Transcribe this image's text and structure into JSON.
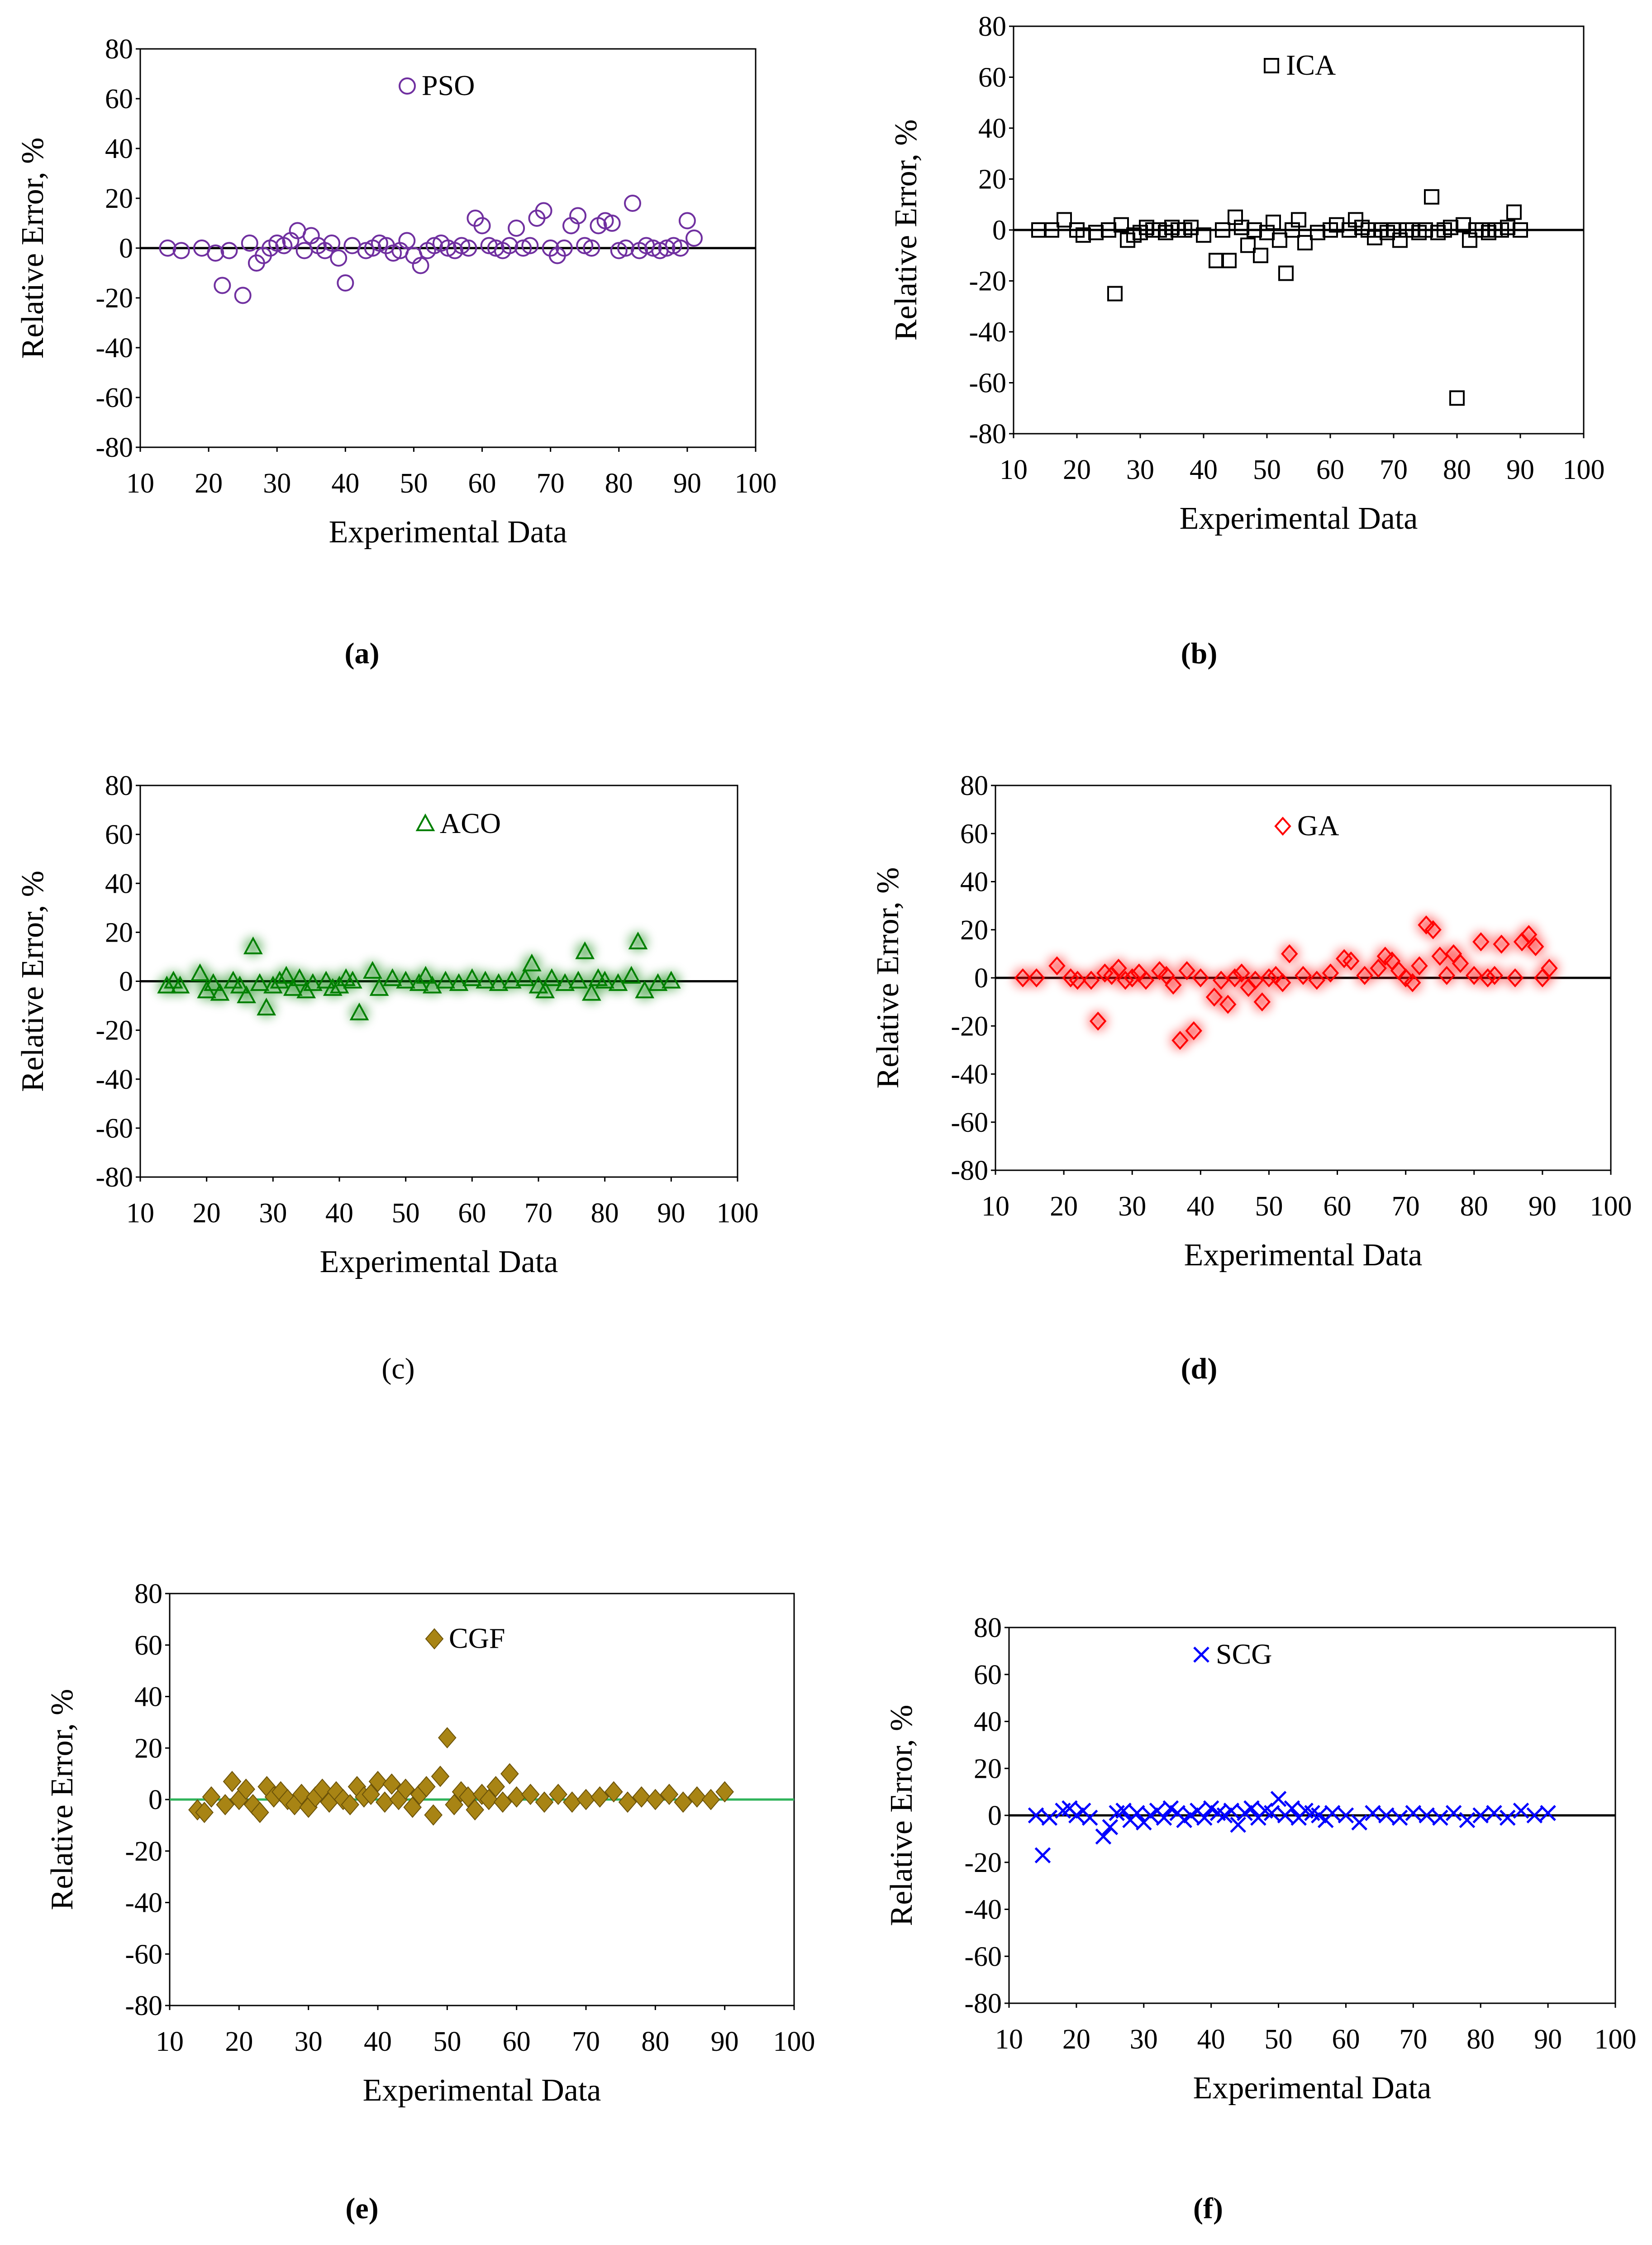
{
  "figure": {
    "captions": [
      "(a)",
      "(b)",
      "(c)",
      "(d)",
      "(e)",
      "(f)"
    ]
  },
  "chart_data": [
    {
      "type": "scatter",
      "panel": "a",
      "caption": "(a)",
      "caption_bold": true,
      "legend": [
        "PSO"
      ],
      "marker": "circle",
      "color": "#7030A0",
      "xlabel": "Experimental Data",
      "ylabel": "Relative Error, %",
      "xlim": [
        10,
        100
      ],
      "ylim": [
        -80,
        80
      ],
      "xticks": [
        10,
        20,
        30,
        40,
        50,
        60,
        70,
        80,
        90,
        100
      ],
      "yticks": [
        80,
        60,
        40,
        20,
        0,
        -20,
        -40,
        -60,
        -80
      ],
      "zero_line_color": "#000000",
      "series": [
        {
          "name": "PSO",
          "x": [
            14,
            16,
            19,
            21,
            22,
            23,
            25,
            26,
            27,
            28,
            29,
            30,
            31,
            32,
            33,
            34,
            35,
            36,
            37,
            38,
            39,
            40,
            41,
            43,
            44,
            45,
            46,
            47,
            48,
            49,
            50,
            51,
            52,
            53,
            54,
            55,
            56,
            57,
            58,
            59,
            60,
            61,
            62,
            63,
            64,
            65,
            66,
            67,
            68,
            69,
            70,
            71,
            72,
            73,
            74,
            75,
            76,
            77,
            78,
            79,
            80,
            81,
            82,
            83,
            84,
            85,
            86,
            87,
            88,
            89,
            90,
            91
          ],
          "y": [
            0,
            -1,
            0,
            -2,
            -15,
            -1,
            -19,
            2,
            -6,
            -3,
            0,
            2,
            1,
            3,
            7,
            -1,
            5,
            1,
            -1,
            2,
            -4,
            -14,
            1,
            -1,
            0,
            2,
            1,
            -2,
            -1,
            3,
            -3,
            -7,
            -1,
            1,
            2,
            0,
            -1,
            1,
            0,
            12,
            9,
            1,
            0,
            -1,
            1,
            8,
            0,
            1,
            12,
            15,
            0,
            -3,
            0,
            9,
            13,
            1,
            0,
            9,
            11,
            10,
            -1,
            0,
            18,
            -1,
            1,
            0,
            -1,
            0,
            1,
            0,
            11,
            4
          ]
        }
      ]
    },
    {
      "type": "scatter",
      "panel": "b",
      "caption": "(b)",
      "caption_bold": true,
      "legend": [
        "ICA"
      ],
      "marker": "square",
      "color": "#000000",
      "xlabel": "Experimental Data",
      "ylabel": "Relative Error, %",
      "xlim": [
        10,
        100
      ],
      "ylim": [
        -80,
        80
      ],
      "xticks": [
        10,
        20,
        30,
        40,
        50,
        60,
        70,
        80,
        90,
        100
      ],
      "yticks": [
        80,
        60,
        40,
        20,
        0,
        -20,
        -40,
        -60,
        -80
      ],
      "zero_line_color": "#000000",
      "series": [
        {
          "name": "ICA",
          "x": [
            14,
            16,
            18,
            20,
            21,
            23,
            25,
            26,
            27,
            28,
            29,
            30,
            31,
            32,
            33,
            34,
            35,
            36,
            37,
            38,
            40,
            42,
            43,
            44,
            45,
            46,
            47,
            48,
            49,
            50,
            51,
            52,
            53,
            54,
            55,
            56,
            58,
            60,
            61,
            63,
            64,
            65,
            66,
            67,
            68,
            69,
            70,
            71,
            72,
            73,
            74,
            75,
            76,
            77,
            78,
            79,
            80,
            81,
            82,
            83,
            84,
            85,
            86,
            87,
            88,
            89,
            90
          ],
          "y": [
            0,
            0,
            4,
            0,
            -2,
            -1,
            0,
            -25,
            2,
            -4,
            -2,
            -1,
            1,
            0,
            0,
            -1,
            1,
            0,
            0,
            1,
            -2,
            -12,
            0,
            -12,
            5,
            1,
            -6,
            0,
            -10,
            -1,
            3,
            -4,
            -17,
            0,
            4,
            -5,
            -1,
            0,
            2,
            0,
            4,
            1,
            0,
            -3,
            0,
            -1,
            0,
            -4,
            0,
            0,
            -1,
            0,
            13,
            -1,
            0,
            1,
            -66,
            2,
            -4,
            0,
            0,
            -1,
            0,
            0,
            1,
            7,
            0
          ]
        }
      ]
    },
    {
      "type": "scatter",
      "panel": "c",
      "caption": "(c)",
      "caption_bold": false,
      "legend": [
        "ACO"
      ],
      "marker": "triangle",
      "color": "#008000",
      "xlabel": "Experimental Data",
      "ylabel": "Relative Error, %",
      "xlim": [
        10,
        100
      ],
      "ylim": [
        -80,
        80
      ],
      "xticks": [
        10,
        20,
        30,
        40,
        50,
        60,
        70,
        80,
        90,
        100
      ],
      "yticks": [
        80,
        60,
        40,
        20,
        0,
        -20,
        -40,
        -60,
        -80
      ],
      "zero_line_color": "#000000",
      "series": [
        {
          "name": "ACO",
          "x": [
            14,
            15,
            16,
            19,
            20,
            21,
            22,
            24,
            25,
            26,
            27,
            28,
            29,
            30,
            31,
            32,
            33,
            34,
            35,
            36,
            38,
            39,
            40,
            41,
            42,
            43,
            45,
            46,
            48,
            50,
            52,
            53,
            54,
            56,
            58,
            60,
            62,
            64,
            66,
            68,
            69,
            70,
            71,
            72,
            74,
            76,
            77,
            78,
            79,
            80,
            82,
            84,
            85,
            86,
            88,
            90
          ],
          "y": [
            -2,
            0,
            -2,
            3,
            -4,
            -1,
            -5,
            0,
            -2,
            -6,
            14,
            -1,
            -11,
            -2,
            0,
            2,
            -3,
            1,
            -4,
            -1,
            0,
            -3,
            -2,
            1,
            0,
            -13,
            4,
            -3,
            1,
            0,
            -1,
            2,
            -2,
            0,
            -1,
            1,
            0,
            -1,
            0,
            1,
            7,
            -2,
            -4,
            1,
            -1,
            0,
            12,
            -5,
            1,
            0,
            -1,
            2,
            16,
            -4,
            -1,
            0
          ]
        }
      ]
    },
    {
      "type": "scatter",
      "panel": "d",
      "caption": "(d)",
      "caption_bold": true,
      "legend": [
        "GA"
      ],
      "marker": "diamond-open",
      "color": "#FF0000",
      "xlabel": "Experimental Data",
      "ylabel": "Relative Error, %",
      "xlim": [
        10,
        100
      ],
      "ylim": [
        -80,
        80
      ],
      "xticks": [
        10,
        20,
        30,
        40,
        50,
        60,
        70,
        80,
        90,
        100
      ],
      "yticks": [
        80,
        60,
        40,
        20,
        0,
        -20,
        -40,
        -60,
        -80
      ],
      "zero_line_color": "#000000",
      "series": [
        {
          "name": "GA",
          "x": [
            14,
            16,
            19,
            21,
            22,
            24,
            25,
            26,
            27,
            28,
            29,
            30,
            31,
            32,
            34,
            35,
            36,
            37,
            38,
            39,
            40,
            42,
            43,
            44,
            45,
            46,
            47,
            48,
            49,
            50,
            51,
            52,
            53,
            55,
            57,
            59,
            61,
            62,
            64,
            66,
            67,
            68,
            69,
            70,
            71,
            72,
            73,
            74,
            75,
            76,
            77,
            78,
            80,
            81,
            82,
            83,
            84,
            86,
            87,
            88,
            89,
            90,
            91
          ],
          "y": [
            0,
            0,
            5,
            0,
            -1,
            -1,
            -18,
            2,
            1,
            4,
            -1,
            0,
            2,
            -1,
            3,
            1,
            -3,
            -26,
            3,
            -22,
            0,
            -8,
            -1,
            -11,
            0,
            2,
            -4,
            -1,
            -10,
            0,
            1,
            -2,
            10,
            1,
            -1,
            2,
            8,
            7,
            1,
            4,
            9,
            7,
            3,
            0,
            -2,
            5,
            22,
            20,
            9,
            1,
            10,
            6,
            1,
            15,
            0,
            1,
            14,
            0,
            15,
            18,
            13,
            0,
            4
          ]
        }
      ]
    },
    {
      "type": "scatter",
      "panel": "e",
      "caption": "(e)",
      "caption_bold": true,
      "legend": [
        "CGF"
      ],
      "marker": "diamond-filled",
      "color": "#A88414",
      "xlabel": "Experimental Data",
      "ylabel": "Relative Error, %",
      "xlim": [
        10,
        100
      ],
      "ylim": [
        -80,
        80
      ],
      "xticks": [
        10,
        20,
        30,
        40,
        50,
        60,
        70,
        80,
        90,
        100
      ],
      "yticks": [
        80,
        60,
        40,
        20,
        0,
        -20,
        -40,
        -60,
        -80
      ],
      "zero_line_color": "#2EB35A",
      "series": [
        {
          "name": "CGF",
          "x": [
            14,
            15,
            16,
            18,
            19,
            20,
            21,
            22,
            23,
            24,
            25,
            26,
            27,
            28,
            29,
            30,
            31,
            32,
            33,
            34,
            35,
            36,
            37,
            38,
            39,
            40,
            41,
            42,
            43,
            44,
            45,
            46,
            47,
            48,
            49,
            50,
            51,
            52,
            53,
            54,
            55,
            56,
            57,
            58,
            59,
            60,
            62,
            64,
            66,
            68,
            70,
            72,
            74,
            76,
            78,
            80,
            82,
            84,
            86,
            88,
            90
          ],
          "y": [
            -4,
            -5,
            1,
            -2,
            7,
            0,
            4,
            -2,
            -5,
            5,
            1,
            3,
            0,
            -2,
            2,
            -3,
            1,
            4,
            -1,
            3,
            0,
            -2,
            5,
            1,
            2,
            7,
            -1,
            6,
            0,
            4,
            -3,
            2,
            5,
            -6,
            9,
            24,
            -2,
            3,
            1,
            -4,
            2,
            0,
            5,
            -1,
            10,
            1,
            2,
            -1,
            2,
            -1,
            0,
            1,
            3,
            -1,
            1,
            0,
            2,
            -1,
            1,
            0,
            3
          ]
        }
      ]
    },
    {
      "type": "scatter",
      "panel": "f",
      "caption": "(f)",
      "caption_bold": true,
      "legend": [
        "SCG"
      ],
      "marker": "x",
      "color": "#0000FF",
      "xlabel": "Experimental Data",
      "ylabel": "Relative Error, %",
      "xlim": [
        10,
        100
      ],
      "ylim": [
        -80,
        80
      ],
      "xticks": [
        10,
        20,
        30,
        40,
        50,
        60,
        70,
        80,
        90,
        100
      ],
      "yticks": [
        80,
        60,
        40,
        20,
        0,
        -20,
        -40,
        -60,
        -80
      ],
      "zero_line_color": "#000000",
      "series": [
        {
          "name": "SCG",
          "x": [
            14,
            15,
            16,
            18,
            19,
            20,
            21,
            22,
            24,
            25,
            26,
            27,
            28,
            29,
            30,
            31,
            32,
            33,
            34,
            35,
            36,
            37,
            38,
            39,
            40,
            41,
            42,
            43,
            44,
            45,
            46,
            47,
            48,
            49,
            50,
            51,
            52,
            53,
            54,
            55,
            56,
            57,
            58,
            60,
            62,
            64,
            66,
            68,
            70,
            72,
            74,
            76,
            78,
            80,
            82,
            84,
            86,
            88,
            90
          ],
          "y": [
            0,
            -17,
            -1,
            2,
            3,
            0,
            2,
            -1,
            -9,
            -5,
            1,
            2,
            -2,
            1,
            -3,
            0,
            2,
            -1,
            3,
            1,
            -2,
            0,
            2,
            -1,
            3,
            1,
            0,
            2,
            -4,
            1,
            3,
            -1,
            2,
            1,
            7,
            0,
            3,
            -1,
            2,
            1,
            0,
            -2,
            1,
            0,
            -3,
            1,
            0,
            -1,
            1,
            0,
            -1,
            1,
            -2,
            0,
            1,
            -1,
            2,
            0,
            1
          ]
        }
      ]
    }
  ]
}
